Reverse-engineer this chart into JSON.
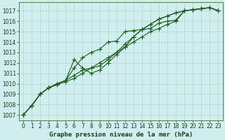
{
  "xlabel": "Graphe pression niveau de la mer (hPa)",
  "ylim": [
    1006.5,
    1017.8
  ],
  "xlim": [
    -0.5,
    23.5
  ],
  "yticks": [
    1007,
    1008,
    1009,
    1010,
    1011,
    1012,
    1013,
    1014,
    1015,
    1016,
    1017
  ],
  "xticks": [
    0,
    1,
    2,
    3,
    4,
    5,
    6,
    7,
    8,
    9,
    10,
    11,
    12,
    13,
    14,
    15,
    16,
    17,
    18,
    19,
    20,
    21,
    22,
    23
  ],
  "bg_color": "#d0eeee",
  "grid_color": "#b0d4d4",
  "line_color": "#1a5c1a",
  "series": [
    [
      1007.0,
      1007.9,
      1009.0,
      1009.6,
      1009.9,
      1010.2,
      1010.5,
      1011.0,
      1011.5,
      1012.0,
      1012.5,
      1013.0,
      1013.5,
      1014.0,
      1014.5,
      1015.0,
      1015.3,
      1015.7,
      1016.0,
      1017.0,
      1017.1,
      1017.2,
      1017.3,
      1017.0
    ],
    [
      1007.0,
      1007.9,
      1009.0,
      1009.6,
      1010.0,
      1010.3,
      1011.5,
      1012.5,
      1013.0,
      1013.3,
      1014.0,
      1014.1,
      1015.0,
      1015.1,
      1015.2,
      1015.3,
      1015.8,
      1016.0,
      1016.1,
      1017.0,
      1017.1,
      1017.2,
      1017.3,
      1017.0
    ],
    [
      1007.0,
      1007.9,
      1009.0,
      1009.6,
      1010.0,
      1010.3,
      1012.3,
      1011.5,
      1011.0,
      1011.3,
      1012.0,
      1012.8,
      1013.5,
      1014.5,
      1015.2,
      1015.7,
      1016.2,
      1016.5,
      1016.8,
      1017.0,
      1017.1,
      1017.2,
      1017.3,
      1017.0
    ],
    [
      1007.0,
      1007.9,
      1009.0,
      1009.6,
      1010.0,
      1010.3,
      1010.8,
      1011.3,
      1011.5,
      1011.7,
      1012.3,
      1013.0,
      1013.8,
      1014.5,
      1015.2,
      1015.7,
      1016.2,
      1016.5,
      1016.8,
      1017.0,
      1017.1,
      1017.2,
      1017.3,
      1017.0
    ]
  ],
  "marker": "+",
  "markersize": 4,
  "linewidth": 0.8,
  "tick_fontsize": 5.5,
  "xlabel_fontsize": 6.5,
  "xlabel_bold": true
}
